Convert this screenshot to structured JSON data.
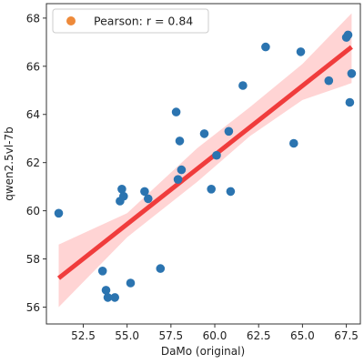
{
  "chart_data": {
    "type": "scatter",
    "title": "",
    "xlabel": "DaMo (original)",
    "ylabel": "qwen2.5vl-7b",
    "xlim": [
      50.4,
      68.3
    ],
    "ylim": [
      55.3,
      68.6
    ],
    "xticks": [
      "52.5",
      "55.0",
      "57.5",
      "60.0",
      "62.5",
      "65.0",
      "67.5"
    ],
    "yticks": [
      "56",
      "58",
      "60",
      "62",
      "64",
      "66",
      "68"
    ],
    "grid": false,
    "legend": {
      "position": "upper-left",
      "label": "Pearson: r = 0.84",
      "marker_color": "#ee8a3a"
    },
    "points": [
      {
        "x": 51.1,
        "y": 59.9
      },
      {
        "x": 53.6,
        "y": 57.5
      },
      {
        "x": 53.8,
        "y": 56.7
      },
      {
        "x": 53.9,
        "y": 56.4
      },
      {
        "x": 54.3,
        "y": 56.4
      },
      {
        "x": 54.6,
        "y": 60.4
      },
      {
        "x": 54.7,
        "y": 60.9
      },
      {
        "x": 54.8,
        "y": 60.6
      },
      {
        "x": 55.2,
        "y": 57.0
      },
      {
        "x": 56.0,
        "y": 60.8
      },
      {
        "x": 56.2,
        "y": 60.5
      },
      {
        "x": 56.9,
        "y": 57.6
      },
      {
        "x": 57.8,
        "y": 64.1
      },
      {
        "x": 57.9,
        "y": 61.3
      },
      {
        "x": 58.0,
        "y": 62.9
      },
      {
        "x": 58.1,
        "y": 61.7
      },
      {
        "x": 59.4,
        "y": 63.2
      },
      {
        "x": 59.8,
        "y": 60.9
      },
      {
        "x": 60.1,
        "y": 62.3
      },
      {
        "x": 60.8,
        "y": 63.3
      },
      {
        "x": 60.9,
        "y": 60.8
      },
      {
        "x": 61.6,
        "y": 65.2
      },
      {
        "x": 62.9,
        "y": 66.8
      },
      {
        "x": 64.5,
        "y": 62.8
      },
      {
        "x": 64.9,
        "y": 66.6
      },
      {
        "x": 66.5,
        "y": 65.4
      },
      {
        "x": 67.5,
        "y": 67.2
      },
      {
        "x": 67.6,
        "y": 67.3
      },
      {
        "x": 67.7,
        "y": 64.5
      },
      {
        "x": 67.8,
        "y": 65.7
      }
    ],
    "regression": {
      "x0": 51.1,
      "y0": 57.2,
      "x1": 67.8,
      "y1": 66.8
    },
    "confidence_band": [
      {
        "x": 51.1,
        "lo": 56.0,
        "hi": 58.6
      },
      {
        "x": 55.0,
        "lo": 58.9,
        "hi": 59.9
      },
      {
        "x": 59.0,
        "lo": 61.2,
        "hi": 62.6
      },
      {
        "x": 62.0,
        "lo": 63.1,
        "hi": 64.3
      },
      {
        "x": 65.0,
        "lo": 64.6,
        "hi": 66.1
      },
      {
        "x": 67.8,
        "lo": 65.3,
        "hi": 68.2
      }
    ],
    "colors": {
      "points": "#2b74b0",
      "regression_line": "#f03c3c",
      "confidence_band": "#ffcccc"
    }
  }
}
